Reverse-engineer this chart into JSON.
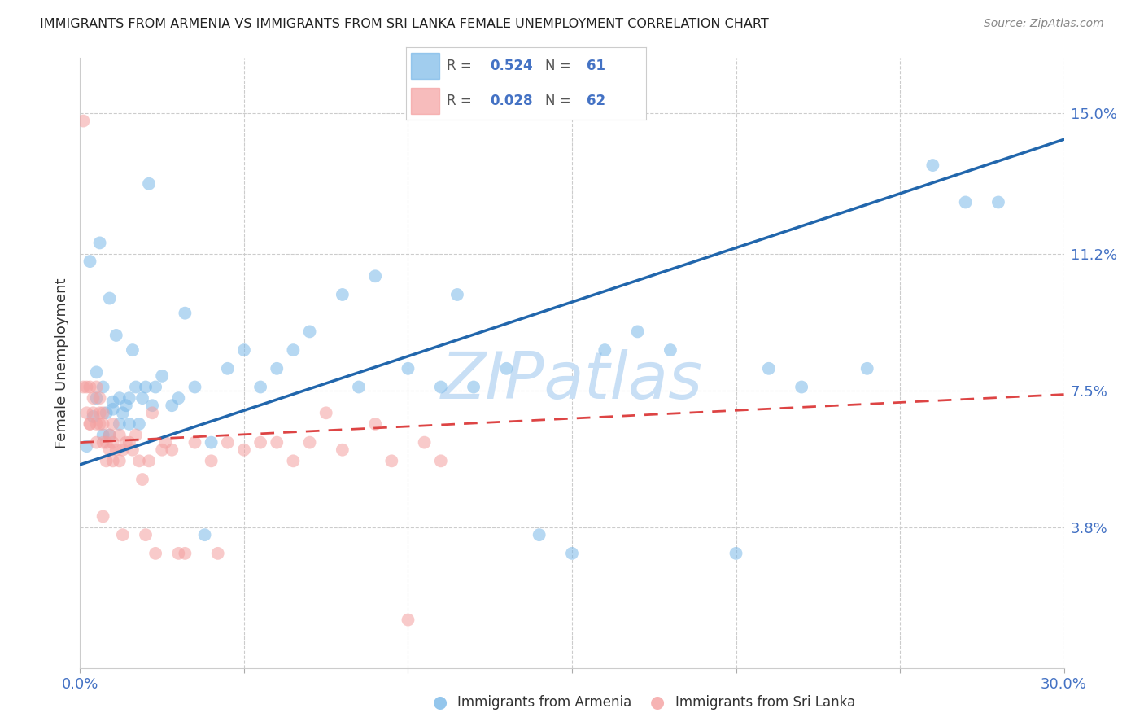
{
  "title": "IMMIGRANTS FROM ARMENIA VS IMMIGRANTS FROM SRI LANKA FEMALE UNEMPLOYMENT CORRELATION CHART",
  "source": "Source: ZipAtlas.com",
  "ylabel": "Female Unemployment",
  "legend_label1": "Immigrants from Armenia",
  "legend_label2": "Immigrants from Sri Lanka",
  "R1": 0.524,
  "N1": 61,
  "R2": 0.028,
  "N2": 62,
  "xlim": [
    0.0,
    0.3
  ],
  "ylim": [
    0.0,
    0.165
  ],
  "yticks": [
    0.038,
    0.075,
    0.112,
    0.15
  ],
  "ytick_labels": [
    "3.8%",
    "7.5%",
    "11.2%",
    "15.0%"
  ],
  "xtick_positions": [
    0.0,
    0.05,
    0.1,
    0.15,
    0.2,
    0.25,
    0.3
  ],
  "xtick_labels": [
    "0.0%",
    "",
    "",
    "",
    "",
    "",
    "30.0%"
  ],
  "color_armenia": "#7ab8e8",
  "color_srilanka": "#f4a0a0",
  "color_armenia_line": "#2166ac",
  "color_srilanka_line": "#d44",
  "background": "#ffffff",
  "watermark": "ZIPatlas",
  "watermark_color": "#c8dff5",
  "armenia_x": [
    0.002,
    0.003,
    0.004,
    0.005,
    0.005,
    0.006,
    0.007,
    0.007,
    0.008,
    0.009,
    0.009,
    0.01,
    0.01,
    0.011,
    0.012,
    0.012,
    0.013,
    0.014,
    0.015,
    0.015,
    0.016,
    0.017,
    0.018,
    0.019,
    0.02,
    0.021,
    0.022,
    0.023,
    0.025,
    0.028,
    0.03,
    0.032,
    0.035,
    0.038,
    0.04,
    0.045,
    0.05,
    0.055,
    0.06,
    0.065,
    0.07,
    0.08,
    0.085,
    0.09,
    0.1,
    0.11,
    0.115,
    0.12,
    0.13,
    0.14,
    0.15,
    0.16,
    0.17,
    0.18,
    0.2,
    0.21,
    0.22,
    0.24,
    0.26,
    0.27,
    0.28
  ],
  "armenia_y": [
    0.06,
    0.11,
    0.068,
    0.073,
    0.08,
    0.115,
    0.063,
    0.076,
    0.069,
    0.1,
    0.063,
    0.07,
    0.072,
    0.09,
    0.066,
    0.073,
    0.069,
    0.071,
    0.066,
    0.073,
    0.086,
    0.076,
    0.066,
    0.073,
    0.076,
    0.131,
    0.071,
    0.076,
    0.079,
    0.071,
    0.073,
    0.096,
    0.076,
    0.036,
    0.061,
    0.081,
    0.086,
    0.076,
    0.081,
    0.086,
    0.091,
    0.101,
    0.076,
    0.106,
    0.081,
    0.076,
    0.101,
    0.076,
    0.081,
    0.036,
    0.031,
    0.086,
    0.091,
    0.086,
    0.031,
    0.081,
    0.076,
    0.081,
    0.136,
    0.126,
    0.126
  ],
  "srilanka_x": [
    0.001,
    0.001,
    0.002,
    0.002,
    0.003,
    0.003,
    0.003,
    0.004,
    0.004,
    0.005,
    0.005,
    0.005,
    0.006,
    0.006,
    0.006,
    0.007,
    0.007,
    0.007,
    0.007,
    0.008,
    0.008,
    0.009,
    0.009,
    0.01,
    0.01,
    0.01,
    0.011,
    0.012,
    0.012,
    0.013,
    0.013,
    0.014,
    0.015,
    0.016,
    0.017,
    0.018,
    0.019,
    0.02,
    0.021,
    0.022,
    0.023,
    0.025,
    0.026,
    0.028,
    0.03,
    0.032,
    0.035,
    0.04,
    0.042,
    0.045,
    0.05,
    0.055,
    0.06,
    0.065,
    0.07,
    0.075,
    0.08,
    0.09,
    0.095,
    0.1,
    0.105,
    0.11
  ],
  "srilanka_y": [
    0.148,
    0.076,
    0.076,
    0.069,
    0.066,
    0.076,
    0.066,
    0.069,
    0.073,
    0.066,
    0.061,
    0.076,
    0.066,
    0.069,
    0.073,
    0.061,
    0.066,
    0.069,
    0.041,
    0.056,
    0.061,
    0.059,
    0.063,
    0.056,
    0.061,
    0.066,
    0.059,
    0.056,
    0.063,
    0.059,
    0.036,
    0.061,
    0.061,
    0.059,
    0.063,
    0.056,
    0.051,
    0.036,
    0.056,
    0.069,
    0.031,
    0.059,
    0.061,
    0.059,
    0.031,
    0.031,
    0.061,
    0.056,
    0.031,
    0.061,
    0.059,
    0.061,
    0.061,
    0.056,
    0.061,
    0.069,
    0.059,
    0.066,
    0.056,
    0.013,
    0.061,
    0.056
  ]
}
